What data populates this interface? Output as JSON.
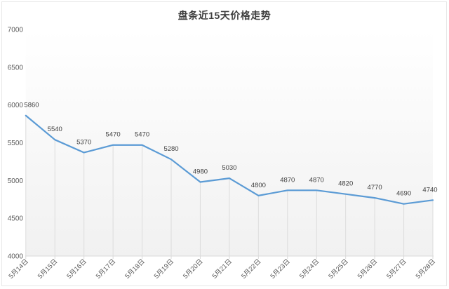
{
  "title": "盘条近15天价格走势",
  "chart_data": {
    "type": "line",
    "title": "盘条近15天价格走势",
    "categories": [
      "5月14日",
      "5月15日",
      "5月16日",
      "5月17日",
      "5月18日",
      "5月19日",
      "5月20日",
      "5月21日",
      "5月22日",
      "5月23日",
      "5月24日",
      "5月25日",
      "5月26日",
      "5月27日",
      "5月28日"
    ],
    "values": [
      5860,
      5540,
      5370,
      5470,
      5470,
      5280,
      4980,
      5030,
      4800,
      4870,
      4870,
      4820,
      4770,
      4690,
      4740
    ],
    "xlabel": "",
    "ylabel": "",
    "ylim": [
      4000,
      7000
    ],
    "yticks": [
      4000,
      4500,
      5000,
      5500,
      6000,
      6500,
      7000
    ],
    "grid": "drop-lines-only",
    "legend": "none",
    "data_labels": true,
    "colors": {
      "line": "#5b9bd5",
      "data_label": "#404040",
      "axis_label": "#595959",
      "axis_line": "#d9d9d9",
      "drop_line": "#dcdcdc",
      "plot_bg_top": "#ffffff",
      "plot_bg_bottom": "#f1f1f1",
      "title": "#3f3f3f"
    }
  }
}
